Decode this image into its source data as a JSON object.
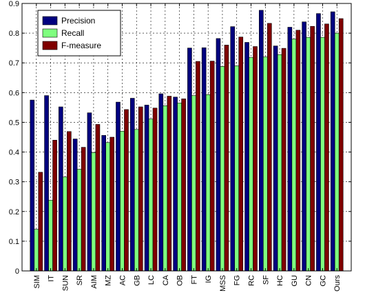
{
  "chart_data": {
    "type": "bar",
    "title": "",
    "xlabel": "",
    "ylabel": "",
    "ylim": [
      0,
      0.9
    ],
    "yticks": [
      0,
      0.1,
      0.2,
      0.3,
      0.4,
      0.5,
      0.6,
      0.7,
      0.8,
      0.9
    ],
    "grid": true,
    "legend_position": "top-left",
    "categories": [
      "SIM",
      "IT",
      "SUN",
      "SR",
      "AIM",
      "MZ",
      "AC",
      "GB",
      "LC",
      "CA",
      "OB",
      "FT",
      "IG",
      "MSS",
      "FG",
      "RC",
      "SF",
      "HC",
      "GU",
      "CN",
      "GC",
      "Ours"
    ],
    "series": [
      {
        "name": "Precision",
        "color": "#00007f",
        "values": [
          0.575,
          0.59,
          0.552,
          0.444,
          0.532,
          0.456,
          0.568,
          0.581,
          0.558,
          0.596,
          0.585,
          0.75,
          0.751,
          0.782,
          0.822,
          0.769,
          0.877,
          0.757,
          0.82,
          0.838,
          0.866,
          0.872
        ]
      },
      {
        "name": "Recall",
        "color": "#7fff7f",
        "values": [
          0.14,
          0.238,
          0.316,
          0.342,
          0.398,
          0.432,
          0.47,
          0.476,
          0.511,
          0.556,
          0.565,
          0.59,
          0.593,
          0.688,
          0.69,
          0.718,
          0.72,
          0.728,
          0.78,
          0.786,
          0.786,
          0.8
        ]
      },
      {
        "name": "F-measure",
        "color": "#7f0000",
        "values": [
          0.332,
          0.44,
          0.469,
          0.416,
          0.493,
          0.45,
          0.543,
          0.552,
          0.548,
          0.588,
          0.579,
          0.705,
          0.706,
          0.76,
          0.787,
          0.755,
          0.833,
          0.749,
          0.81,
          0.823,
          0.831,
          0.849
        ]
      }
    ]
  }
}
